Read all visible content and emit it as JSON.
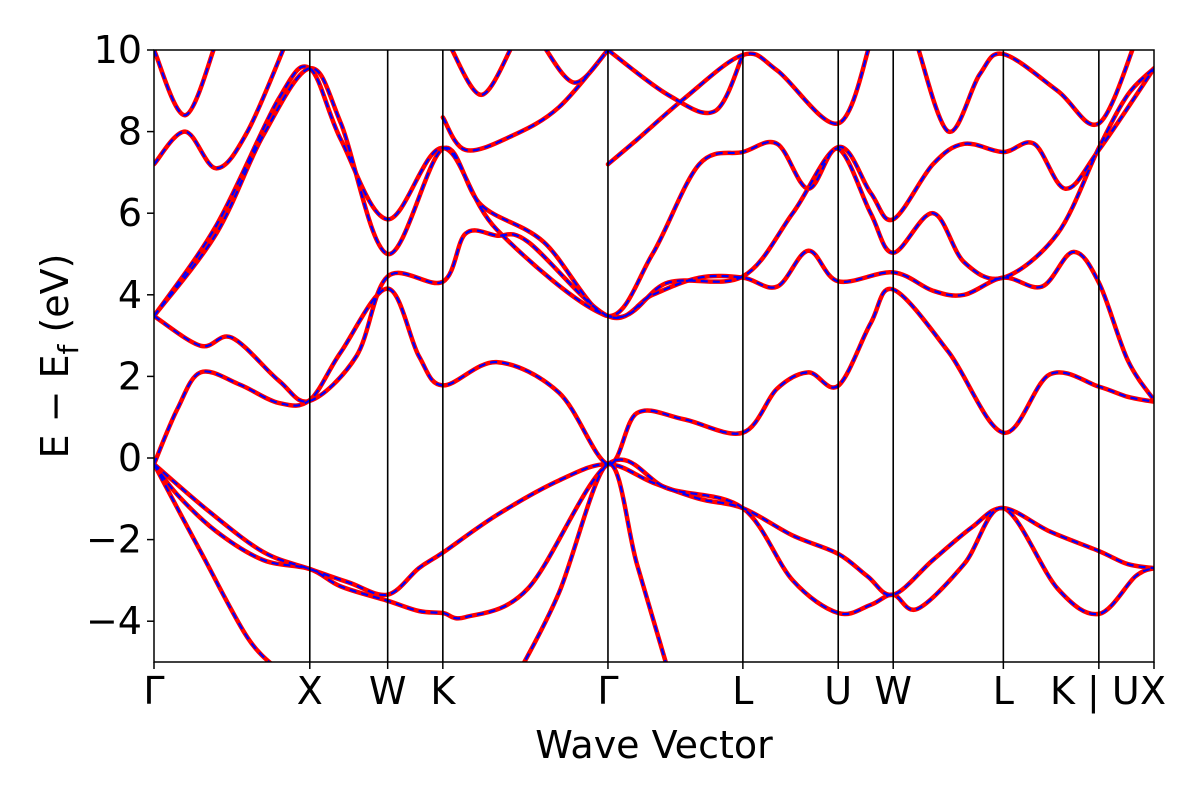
{
  "chart_data": {
    "type": "line",
    "xlabel": "Wave Vector",
    "ylabel_main": "E − E",
    "ylabel_sub": "f",
    "ylabel_unit": " (eV)",
    "ylim": [
      -5,
      10
    ],
    "yticks": [
      {
        "value": 10,
        "label": "10"
      },
      {
        "value": 8,
        "label": "8"
      },
      {
        "value": 6,
        "label": "6"
      },
      {
        "value": 4,
        "label": "4"
      },
      {
        "value": 2,
        "label": "2"
      },
      {
        "value": 0,
        "label": "0"
      },
      {
        "value": -2,
        "label": "−2"
      },
      {
        "value": -4,
        "label": "−4"
      }
    ],
    "kpoints": [
      {
        "label": "Γ",
        "x": 0
      },
      {
        "label": "X",
        "x": 1.0
      },
      {
        "label": "W",
        "x": 1.5
      },
      {
        "label": "K",
        "x": 1.854
      },
      {
        "label": "Γ",
        "x": 2.914
      },
      {
        "label": "L",
        "x": 3.78
      },
      {
        "label": "U",
        "x": 4.392
      },
      {
        "label": "W",
        "x": 4.745
      },
      {
        "label": "L",
        "x": 5.452
      },
      {
        "label": "K | U",
        "x": 6.065
      },
      {
        "label": "X",
        "x": 6.419
      }
    ],
    "grid": false,
    "series": [
      {
        "color": "#ff0000",
        "style": "solid",
        "bands": [
          [
            [
              0,
              -0.15
            ],
            [
              0.35,
              -1.3
            ],
            [
              0.7,
              -2.3
            ],
            [
              1.0,
              -2.72
            ],
            [
              1.25,
              -3.05
            ],
            [
              1.5,
              -3.35
            ],
            [
              1.7,
              -2.7
            ],
            [
              1.854,
              -2.32
            ],
            [
              2.2,
              -1.4
            ],
            [
              2.6,
              -0.55
            ],
            [
              2.914,
              -0.15
            ],
            [
              3.2,
              -0.6
            ],
            [
              3.5,
              -1.0
            ],
            [
              3.78,
              -1.23
            ],
            [
              4.1,
              -1.9
            ],
            [
              4.392,
              -2.35
            ],
            [
              4.58,
              -2.9
            ],
            [
              4.745,
              -3.35
            ],
            [
              5.0,
              -2.5
            ],
            [
              5.25,
              -1.7
            ],
            [
              5.452,
              -1.23
            ],
            [
              5.75,
              -1.8
            ],
            [
              6.065,
              -2.28
            ],
            [
              6.25,
              -2.6
            ],
            [
              6.419,
              -2.7
            ]
          ],
          [
            [
              0,
              -0.15
            ],
            [
              0.3,
              -2.3
            ],
            [
              0.6,
              -4.4
            ],
            [
              0.8,
              -5.2
            ]
          ],
          [
            [
              2.35,
              -5.2
            ],
            [
              2.6,
              -3.3
            ],
            [
              2.914,
              -0.15
            ],
            [
              3.1,
              -2.6
            ],
            [
              3.3,
              -5.2
            ]
          ],
          [
            [
              0,
              -0.15
            ],
            [
              0.15,
              1.2
            ],
            [
              0.3,
              2.1
            ],
            [
              0.55,
              1.8
            ],
            [
              0.8,
              1.35
            ],
            [
              1.0,
              1.42
            ],
            [
              1.2,
              2.6
            ],
            [
              1.5,
              4.15
            ],
            [
              1.7,
              2.5
            ],
            [
              1.854,
              1.78
            ],
            [
              2.2,
              2.35
            ],
            [
              2.6,
              1.6
            ],
            [
              2.914,
              -0.15
            ],
            [
              3.1,
              1.1
            ],
            [
              3.4,
              0.95
            ],
            [
              3.78,
              0.62
            ],
            [
              4.0,
              1.7
            ],
            [
              4.2,
              2.1
            ],
            [
              4.392,
              1.77
            ],
            [
              4.6,
              3.3
            ],
            [
              4.745,
              4.13
            ],
            [
              5.1,
              2.6
            ],
            [
              5.452,
              0.62
            ],
            [
              5.75,
              2.05
            ],
            [
              6.065,
              1.75
            ],
            [
              6.25,
              1.5
            ],
            [
              6.419,
              1.38
            ]
          ],
          [
            [
              0,
              -0.15
            ],
            [
              0.15,
              -0.9
            ],
            [
              0.4,
              -1.8
            ],
            [
              0.7,
              -2.5
            ],
            [
              1.0,
              -2.72
            ],
            [
              1.2,
              -3.15
            ],
            [
              1.5,
              -3.5
            ],
            [
              1.7,
              -3.75
            ],
            [
              1.854,
              -3.8
            ],
            [
              2.0,
              -3.9
            ],
            [
              2.4,
              -3.2
            ],
            [
              2.914,
              -0.15
            ],
            [
              3.3,
              -0.75
            ],
            [
              3.78,
              -1.23
            ],
            [
              4.1,
              -3.0
            ],
            [
              4.392,
              -3.8
            ],
            [
              4.6,
              -3.6
            ],
            [
              4.745,
              -3.35
            ],
            [
              4.9,
              -3.7
            ],
            [
              5.2,
              -2.6
            ],
            [
              5.452,
              -1.23
            ],
            [
              5.8,
              -3.2
            ],
            [
              6.065,
              -3.82
            ],
            [
              6.3,
              -2.9
            ],
            [
              6.419,
              -2.7
            ]
          ],
          [
            [
              0,
              3.48
            ],
            [
              0.3,
              2.75
            ],
            [
              0.5,
              2.95
            ],
            [
              0.8,
              1.9
            ],
            [
              1.0,
              1.4
            ],
            [
              1.3,
              2.5
            ],
            [
              1.5,
              4.45
            ],
            [
              1.854,
              4.32
            ],
            [
              2.0,
              5.5
            ],
            [
              2.2,
              5.45
            ],
            [
              2.4,
              5.3
            ],
            [
              2.914,
              3.48
            ],
            [
              3.2,
              4.0
            ],
            [
              3.5,
              4.42
            ],
            [
              3.78,
              4.42
            ],
            [
              4.0,
              4.2
            ],
            [
              4.2,
              5.08
            ],
            [
              4.392,
              4.33
            ],
            [
              4.745,
              4.55
            ],
            [
              5.0,
              4.1
            ],
            [
              5.2,
              4.0
            ],
            [
              5.452,
              4.42
            ],
            [
              5.7,
              4.2
            ],
            [
              5.9,
              5.05
            ],
            [
              6.065,
              4.3
            ],
            [
              6.25,
              2.4
            ],
            [
              6.419,
              1.42
            ]
          ],
          [
            [
              0,
              3.48
            ],
            [
              0.4,
              5.5
            ],
            [
              0.7,
              7.9
            ],
            [
              1.0,
              9.55
            ],
            [
              1.2,
              8.2
            ],
            [
              1.5,
              5.0
            ],
            [
              1.854,
              7.58
            ],
            [
              2.1,
              6.2
            ],
            [
              2.5,
              5.3
            ],
            [
              2.914,
              3.48
            ],
            [
              3.2,
              5.0
            ],
            [
              3.5,
              7.2
            ],
            [
              3.78,
              7.5
            ],
            [
              4.0,
              7.7
            ],
            [
              4.2,
              6.6
            ],
            [
              4.392,
              7.58
            ],
            [
              4.6,
              6.0
            ],
            [
              4.745,
              5.03
            ],
            [
              5.0,
              6.0
            ],
            [
              5.2,
              4.8
            ],
            [
              5.452,
              4.42
            ],
            [
              5.8,
              5.5
            ],
            [
              6.065,
              7.6
            ],
            [
              6.25,
              8.9
            ],
            [
              6.419,
              9.55
            ]
          ],
          [
            [
              0,
              3.48
            ],
            [
              0.4,
              5.7
            ],
            [
              0.8,
              8.8
            ],
            [
              1.0,
              9.55
            ],
            [
              1.2,
              7.8
            ],
            [
              1.5,
              5.85
            ],
            [
              1.854,
              7.6
            ],
            [
              2.2,
              5.6
            ],
            [
              2.914,
              3.48
            ],
            [
              3.3,
              4.3
            ],
            [
              3.78,
              4.45
            ],
            [
              4.1,
              6.0
            ],
            [
              4.392,
              7.62
            ],
            [
              4.6,
              6.5
            ],
            [
              4.745,
              5.85
            ],
            [
              5.0,
              7.2
            ],
            [
              5.2,
              7.7
            ],
            [
              5.452,
              7.5
            ],
            [
              5.65,
              7.7
            ],
            [
              5.85,
              6.6
            ],
            [
              6.065,
              7.55
            ],
            [
              6.419,
              9.55
            ]
          ],
          [
            [
              0,
              7.2
            ],
            [
              0.2,
              8.0
            ],
            [
              0.4,
              7.1
            ],
            [
              0.6,
              8.0
            ],
            [
              0.85,
              10.2
            ]
          ],
          [
            [
              0,
              10.0
            ],
            [
              0.2,
              8.4
            ],
            [
              0.4,
              10.2
            ]
          ],
          [
            [
              1.854,
              8.35
            ],
            [
              2.0,
              7.55
            ],
            [
              2.3,
              7.9
            ],
            [
              2.6,
              8.6
            ],
            [
              2.914,
              10.0
            ]
          ],
          [
            [
              2.914,
              7.2
            ],
            [
              3.1,
              7.8
            ],
            [
              3.4,
              8.8
            ],
            [
              3.78,
              9.88
            ],
            [
              4.0,
              9.5
            ],
            [
              4.392,
              8.2
            ],
            [
              4.6,
              10.2
            ]
          ],
          [
            [
              2.914,
              10.0
            ],
            [
              3.3,
              8.9
            ],
            [
              3.6,
              8.5
            ],
            [
              3.78,
              9.88
            ]
          ],
          [
            [
              4.9,
              10.1
            ],
            [
              5.1,
              8.0
            ],
            [
              5.3,
              9.4
            ],
            [
              5.452,
              9.9
            ],
            [
              5.8,
              9.0
            ],
            [
              6.065,
              8.2
            ],
            [
              6.3,
              10.2
            ]
          ],
          [
            [
              2.5,
              10.1
            ],
            [
              2.7,
              9.2
            ],
            [
              2.914,
              10.0
            ]
          ],
          [
            [
              1.9,
              10.1
            ],
            [
              2.1,
              8.9
            ],
            [
              2.3,
              10.1
            ]
          ]
        ]
      },
      {
        "color": "#0000ff",
        "style": "dashed",
        "bands_ref": "same"
      }
    ]
  }
}
